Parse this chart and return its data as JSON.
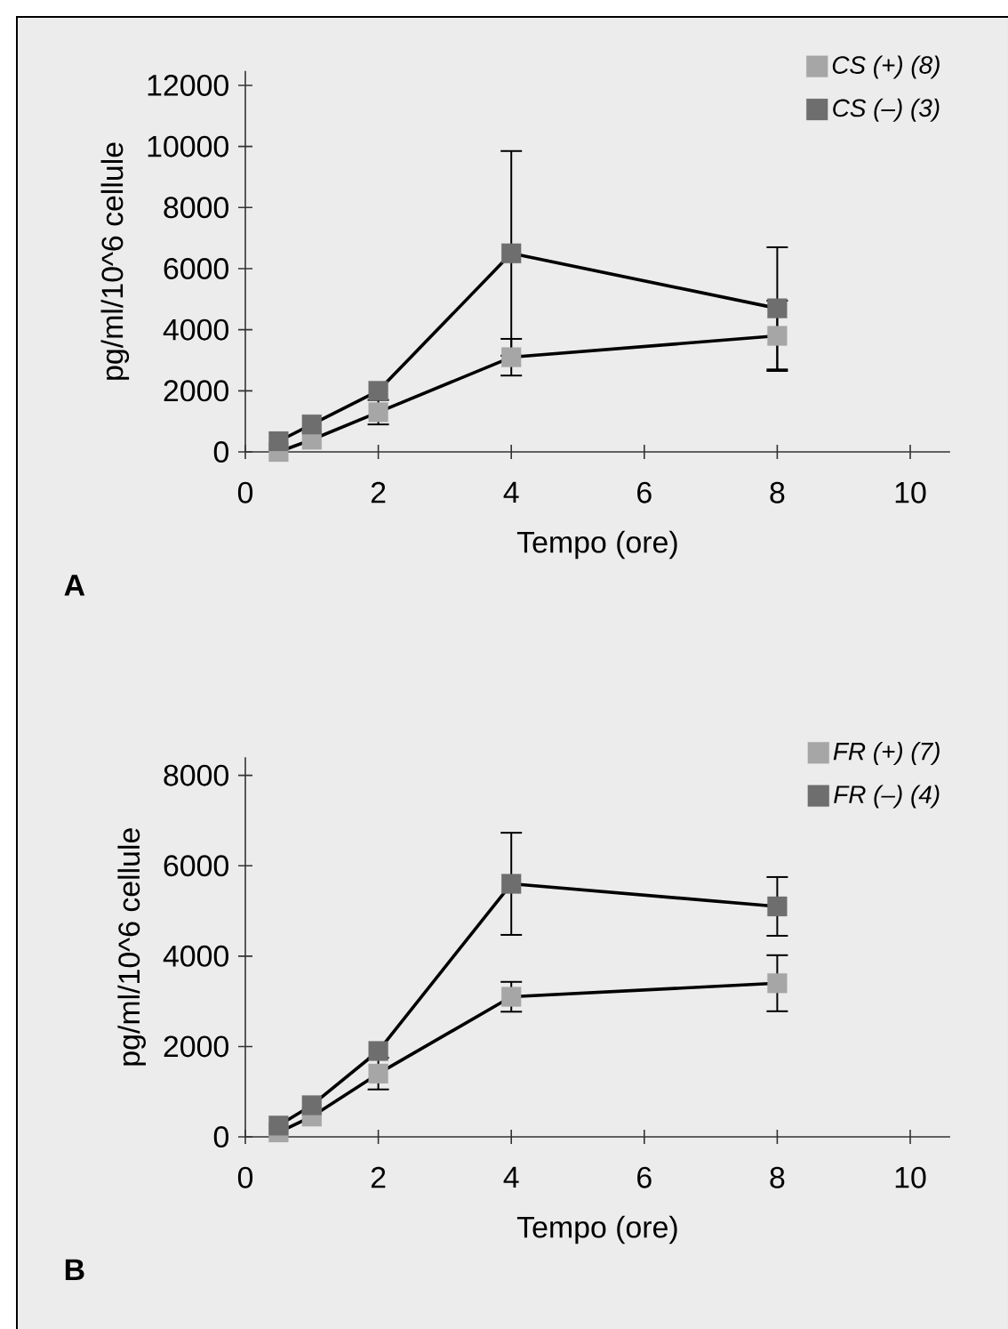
{
  "chart_data": [
    {
      "type": "line",
      "xlabel": "Tempo (ore)",
      "ylabel": "pg/ml/10^6 cellule",
      "annotations": [
        "A"
      ],
      "x": [
        0.5,
        1,
        2,
        4,
        8
      ],
      "xlim": [
        0,
        10.6
      ],
      "ylim": [
        0,
        12470
      ],
      "xticks": [
        0,
        2,
        4,
        6,
        8,
        10
      ],
      "yticks": [
        0,
        2000,
        4000,
        6000,
        8000,
        10000,
        12000
      ],
      "legend": "top right",
      "marker": "square",
      "series": [
        {
          "name": "CS (+) (8)",
          "color": "#a6a6a6",
          "values": [
            0,
            400,
            1300,
            3100,
            3800
          ],
          "errors": [
            null,
            null,
            400,
            600,
            1150
          ]
        },
        {
          "name": "CS (–) (3)",
          "color": "#6e6e6e",
          "values": [
            350,
            900,
            2000,
            6500,
            4700
          ],
          "errors": [
            null,
            null,
            null,
            3350,
            2000
          ]
        }
      ]
    },
    {
      "type": "line",
      "xlabel": "Tempo (ore)",
      "ylabel": "pg/ml/10^6 cellule",
      "annotations": [
        "B"
      ],
      "x": [
        0.5,
        1,
        2,
        4,
        8
      ],
      "xlim": [
        0,
        10.6
      ],
      "ylim": [
        0,
        8400
      ],
      "xticks": [
        0,
        2,
        4,
        6,
        8,
        10
      ],
      "yticks": [
        0,
        2000,
        4000,
        6000,
        8000
      ],
      "legend": "top right",
      "marker": "square",
      "series": [
        {
          "name": "FR (+) (7)",
          "color": "#a6a6a6",
          "values": [
            100,
            450,
            1400,
            3100,
            3400
          ],
          "errors": [
            null,
            null,
            350,
            330,
            620
          ]
        },
        {
          "name": "FR (–) (4)",
          "color": "#6e6e6e",
          "values": [
            250,
            700,
            1900,
            5600,
            5100
          ],
          "errors": [
            null,
            null,
            null,
            1130,
            650
          ]
        }
      ]
    }
  ]
}
